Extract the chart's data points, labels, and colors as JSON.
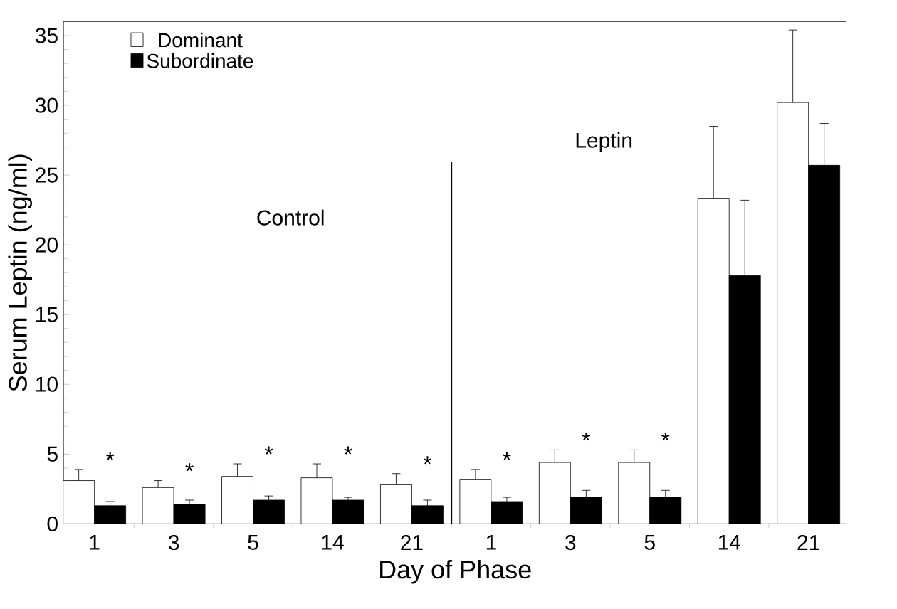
{
  "chart_data": {
    "type": "bar",
    "xlabel": "Day of Phase",
    "ylabel": "Serum Leptin (ng/ml)",
    "categories": [
      "1",
      "3",
      "5",
      "14",
      "21",
      "1",
      "3",
      "5",
      "14",
      "21"
    ],
    "series": [
      {
        "name": "Dominant",
        "color": "#ffffff",
        "values": [
          3.1,
          2.6,
          3.4,
          3.3,
          2.8,
          3.2,
          4.4,
          4.4,
          23.3,
          30.2
        ],
        "errors": [
          0.8,
          0.5,
          0.9,
          1.0,
          0.8,
          0.7,
          0.9,
          0.9,
          5.2,
          5.2
        ]
      },
      {
        "name": "Subordinate",
        "color": "#000000",
        "values": [
          1.3,
          1.4,
          1.7,
          1.7,
          1.3,
          1.6,
          1.9,
          1.9,
          17.8,
          25.7
        ],
        "errors": [
          0.3,
          0.3,
          0.3,
          0.2,
          0.4,
          0.3,
          0.5,
          0.5,
          5.4,
          3.0
        ],
        "value_labels": [
          "*",
          "*",
          "*",
          "*",
          "*",
          "*",
          "*",
          "*",
          null,
          null
        ]
      }
    ],
    "ylim": [
      0,
      36
    ],
    "yticks": [
      0,
      5,
      10,
      15,
      20,
      25,
      30,
      35
    ],
    "annotations": [
      "Control",
      "Leptin"
    ],
    "legend": "top left",
    "grid": false
  }
}
